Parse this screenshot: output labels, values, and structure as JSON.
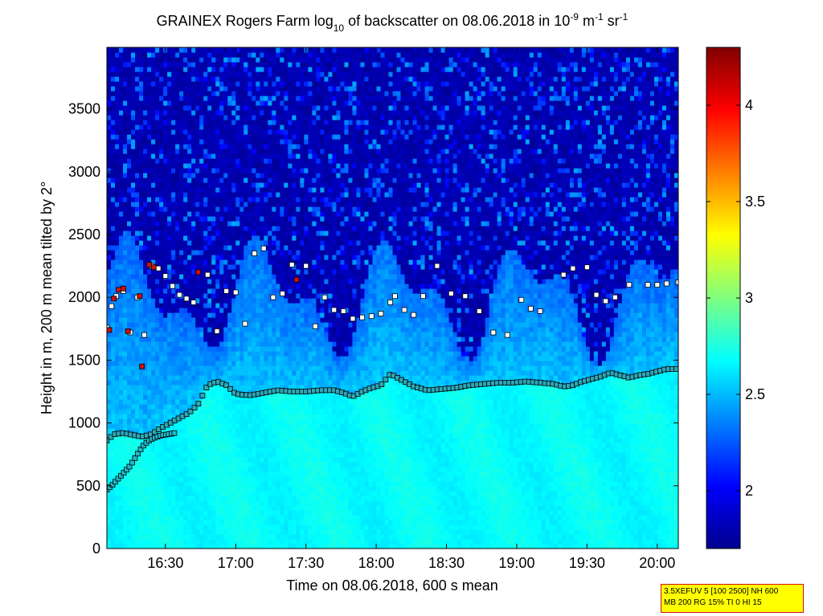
{
  "chart_data": {
    "type": "heatmap",
    "title": {
      "prefix": "GRAINEX Rogers Farm log",
      "log_base": "10",
      "middle": " of backscatter on 08.06.2018 in 10",
      "exp1": "-9",
      "m_unit": " m",
      "exp2": "-1",
      "sr_unit": " sr",
      "exp3": "-1"
    },
    "xlabel": "Time on 08.06.2018, 600 s mean",
    "ylabel": "Height in m, 200 m mean tilted by 2°",
    "xlim_minutes": [
      965,
      1209
    ],
    "x_ticks": [
      {
        "minute": 990,
        "label": "16:30"
      },
      {
        "minute": 1020,
        "label": "17:00"
      },
      {
        "minute": 1050,
        "label": "17:30"
      },
      {
        "minute": 1080,
        "label": "18:00"
      },
      {
        "minute": 1110,
        "label": "18:30"
      },
      {
        "minute": 1140,
        "label": "19:00"
      },
      {
        "minute": 1170,
        "label": "19:30"
      },
      {
        "minute": 1200,
        "label": "20:00"
      }
    ],
    "ylim": [
      0,
      3990
    ],
    "y_ticks": [
      {
        "value": 0,
        "label": "0"
      },
      {
        "value": 500,
        "label": "500"
      },
      {
        "value": 1000,
        "label": "1000"
      },
      {
        "value": 1500,
        "label": "1500"
      },
      {
        "value": 2000,
        "label": "2000"
      },
      {
        "value": 2500,
        "label": "2500"
      },
      {
        "value": 3000,
        "label": "3000"
      },
      {
        "value": 3500,
        "label": "3500"
      }
    ],
    "colorbar": {
      "range": [
        1.7,
        4.3
      ],
      "colormap": "jet",
      "ticks": [
        {
          "value": 2,
          "label": "2"
        },
        {
          "value": 2.5,
          "label": "2.5"
        },
        {
          "value": 3,
          "label": "3"
        },
        {
          "value": 3.5,
          "label": "3.5"
        },
        {
          "value": 4,
          "label": "4"
        }
      ]
    },
    "boundary_layer_top": {
      "minutes": [
        965,
        968,
        972,
        976,
        980,
        984,
        988,
        992,
        996,
        1000,
        1004,
        1008,
        1012,
        1016,
        1020,
        1026,
        1032,
        1038,
        1044,
        1050,
        1056,
        1062,
        1066,
        1070,
        1074,
        1078,
        1082,
        1086,
        1090,
        1096,
        1102,
        1108,
        1114,
        1120,
        1126,
        1132,
        1138,
        1144,
        1150,
        1156,
        1160,
        1164,
        1168,
        1172,
        1176,
        1180,
        1184,
        1188,
        1192,
        1196,
        1200,
        1204,
        1209
      ],
      "heights": [
        860,
        910,
        920,
        905,
        890,
        910,
        960,
        1000,
        1040,
        1080,
        1150,
        1300,
        1330,
        1300,
        1230,
        1220,
        1240,
        1260,
        1250,
        1250,
        1260,
        1260,
        1240,
        1210,
        1250,
        1280,
        1300,
        1390,
        1350,
        1290,
        1260,
        1270,
        1280,
        1300,
        1310,
        1320,
        1320,
        1330,
        1320,
        1310,
        1290,
        1300,
        1330,
        1350,
        1370,
        1400,
        1380,
        1360,
        1380,
        1390,
        1410,
        1430,
        1430
      ]
    },
    "rising_layer": {
      "minutes": [
        965,
        967,
        969,
        971,
        973,
        975,
        977,
        979,
        981,
        983,
        985,
        988,
        991,
        994
      ],
      "heights": [
        470,
        500,
        540,
        580,
        620,
        660,
        720,
        780,
        830,
        860,
        880,
        900,
        910,
        920
      ]
    },
    "upper_layer_points": {
      "minutes": [
        965,
        967,
        969,
        972,
        975,
        978,
        981,
        984,
        987,
        990,
        993,
        996,
        999,
        1002,
        1008,
        1012,
        1016,
        1020,
        1024,
        1028,
        1032,
        1036,
        1040,
        1044,
        1050,
        1054,
        1058,
        1062,
        1066,
        1070,
        1074,
        1078,
        1082,
        1086,
        1088,
        1092,
        1096,
        1100,
        1106,
        1112,
        1118,
        1124,
        1130,
        1136,
        1142,
        1146,
        1150,
        1160,
        1164,
        1170,
        1174,
        1178,
        1182,
        1188,
        1196,
        1200,
        1204,
        1209
      ],
      "heights": [
        1760,
        1930,
        2010,
        2050,
        1720,
        2000,
        1700,
        2250,
        2230,
        2170,
        2090,
        2020,
        1990,
        1960,
        2180,
        1730,
        2050,
        2040,
        1790,
        2350,
        2390,
        2000,
        2030,
        2260,
        2250,
        1770,
        2000,
        1900,
        1890,
        1830,
        1840,
        1850,
        1870,
        1960,
        2010,
        1900,
        1860,
        2010,
        2250,
        2030,
        2010,
        1890,
        1720,
        1700,
        1980,
        1910,
        1890,
        2180,
        2230,
        2240,
        2020,
        1970,
        2000,
        2100,
        2100,
        2100,
        2110,
        2120
      ]
    },
    "saturated_points": {
      "minutes": [
        966,
        968,
        970,
        972,
        974,
        979,
        980,
        983,
        985,
        1004,
        1046
      ],
      "heights": [
        1740,
        1990,
        2060,
        2070,
        1730,
        2010,
        1450,
        2260,
        2240,
        2200,
        2140
      ]
    },
    "annotation": {
      "line1": "3.5XEFUV 5 [100 2500] NH 600",
      "line2": "MB 200 RG 15% TI 0 HI 15"
    }
  }
}
